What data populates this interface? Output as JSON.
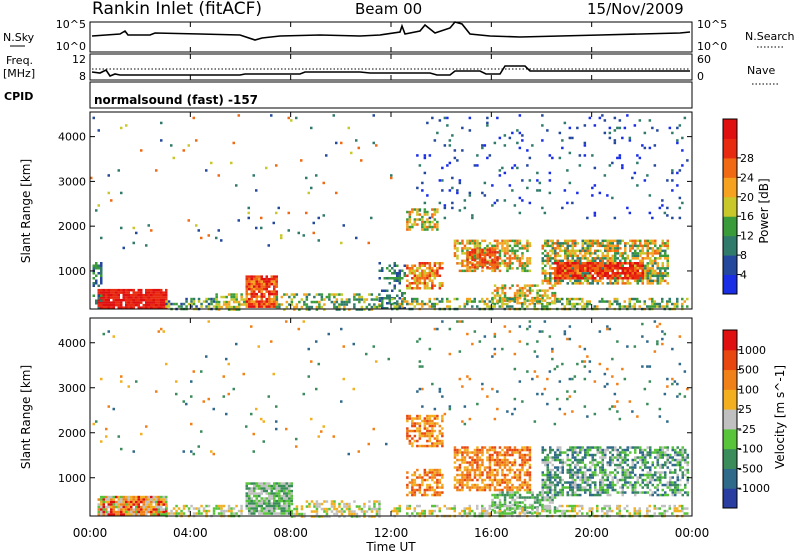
{
  "header": {
    "station": "Rankin Inlet (fitACF)",
    "beam": "Beam 00",
    "date": "15/Nov/2009"
  },
  "sky_panel": {
    "left_label": "N.Sky",
    "left_ticks": [
      "10^5",
      "10^0"
    ],
    "right_label": "N.Search",
    "right_ticks": [
      "10^5",
      "10^0"
    ]
  },
  "freq_panel": {
    "left_label_1": "Freq.",
    "left_label_2": "[MHz]",
    "left_ticks": [
      "12",
      "8"
    ],
    "right_label": "Nave",
    "right_ticks": [
      "60",
      "0"
    ]
  },
  "cpid_panel": {
    "label": "CPID",
    "text": "normalsound (fast) -157"
  },
  "chart_data": [
    {
      "type": "heatmap",
      "name": "power",
      "ylabel": "Slant Range [km]",
      "y_ticks": [
        "1000",
        "2000",
        "3000",
        "4000"
      ],
      "ylim": [
        150,
        4550
      ],
      "colorbar_label": "Power [dB]",
      "colorbar_ticks": [
        "4",
        "8",
        "12",
        "16",
        "20",
        "24",
        "28"
      ],
      "colorbar_colors": [
        "#1a2ee6",
        "#24489c",
        "#2f7a6a",
        "#3a9b3a",
        "#c8c82a",
        "#f4a21f",
        "#ef6a12",
        "#e82a10",
        "#e01010"
      ]
    },
    {
      "type": "heatmap",
      "name": "velocity",
      "ylabel": "Slant Range [km]",
      "y_ticks": [
        "1000",
        "2000",
        "3000",
        "4000"
      ],
      "ylim": [
        150,
        4550
      ],
      "colorbar_label": "Velocity [m s^-1]",
      "colorbar_ticks": [
        "1000",
        "500",
        "100",
        "25",
        "-25",
        "-100",
        "-500",
        "-1000"
      ],
      "colorbar_colors": [
        "#2a3da0",
        "#2f6a8a",
        "#3a8c5a",
        "#57c43a",
        "#c0c0c0",
        "#f2b020",
        "#f08018",
        "#e84810",
        "#e01010"
      ]
    }
  ],
  "time_axis": {
    "ticks": [
      "00:00",
      "04:00",
      "08:00",
      "12:00",
      "16:00",
      "20:00",
      "00:00"
    ],
    "label": "Time UT"
  }
}
